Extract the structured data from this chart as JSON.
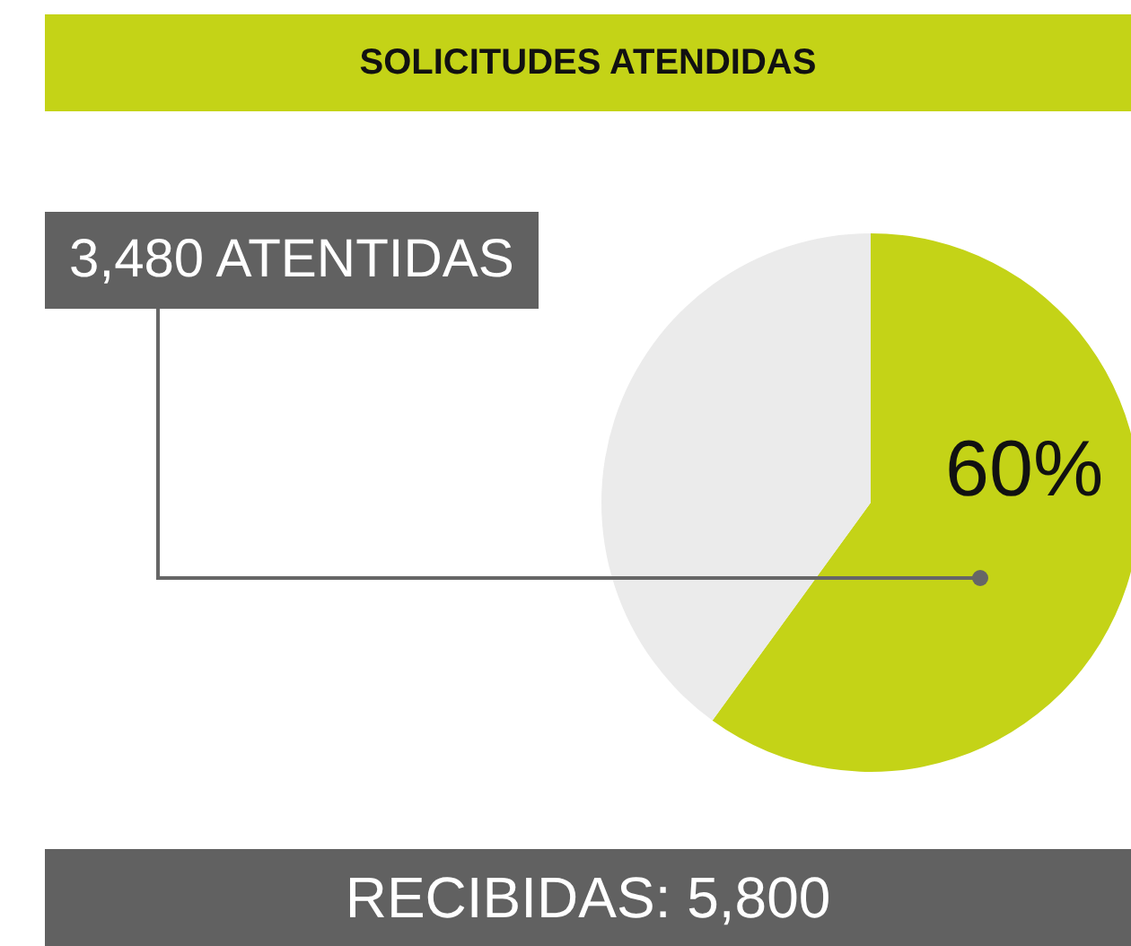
{
  "chart_data": {
    "type": "pie",
    "title": "SOLICITUDES ATENDIDAS",
    "categories": [
      null,
      null
    ],
    "values": [
      60,
      40
    ],
    "colors": [
      "#c4d317",
      "#ebebeb"
    ],
    "value_labels": [
      "60%",
      null
    ],
    "annotations": [
      "3,480 ATENTIDAS",
      "RECIBIDAS: 5,800"
    ]
  }
}
